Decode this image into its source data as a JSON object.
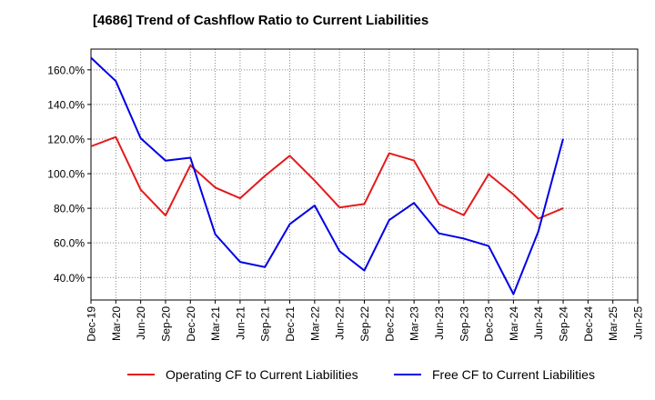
{
  "chart_data": {
    "type": "line",
    "title": "[4686]  Trend of Cashflow Ratio to Current Liabilities",
    "categories": [
      "Dec-19",
      "Mar-20",
      "Jun-20",
      "Sep-20",
      "Dec-20",
      "Mar-21",
      "Jun-21",
      "Sep-21",
      "Dec-21",
      "Mar-22",
      "Jun-22",
      "Sep-22",
      "Dec-22",
      "Mar-23",
      "Jun-23",
      "Sep-23",
      "Dec-23",
      "Mar-24",
      "Jun-24",
      "Sep-24",
      "Dec-24",
      "Mar-25"
    ],
    "x_tick_labels": [
      "Dec-19",
      "Mar-20",
      "Jun-20",
      "Sep-20",
      "Dec-20",
      "Mar-21",
      "Jun-21",
      "Sep-21",
      "Dec-21",
      "Mar-22",
      "Jun-22",
      "Sep-22",
      "Dec-22",
      "Mar-23",
      "Jun-23",
      "Sep-23",
      "Dec-23",
      "Mar-24",
      "Jun-24",
      "Sep-24",
      "Dec-24",
      "Mar-25",
      "Jun-25"
    ],
    "y_ticks": [
      40,
      60,
      80,
      100,
      120,
      140,
      160
    ],
    "y_tick_labels": [
      "40.0%",
      "60.0%",
      "80.0%",
      "100.0%",
      "120.0%",
      "140.0%",
      "160.0%"
    ],
    "ylim": [
      27,
      172
    ],
    "grid": true,
    "legend_position": "bottom",
    "series": [
      {
        "name": "Operating CF to Current Liabilities",
        "color": "#e41a1c",
        "values": [
          115.8,
          121.2,
          90.8,
          75.8,
          104.8,
          92.0,
          85.8,
          98.7,
          110.4,
          96.0,
          80.5,
          82.5,
          111.8,
          107.6,
          82.5,
          76.0,
          99.7,
          88.0,
          74.0,
          80.0,
          null,
          null
        ]
      },
      {
        "name": "Free CF to Current Liabilities",
        "color": "#0000e6",
        "values": [
          167.0,
          153.5,
          120.5,
          107.5,
          109.2,
          65.0,
          49.0,
          46.0,
          70.8,
          81.6,
          55.2,
          44.0,
          73.2,
          83.1,
          65.5,
          62.5,
          58.2,
          30.4,
          66.5,
          120.2,
          null,
          null
        ]
      }
    ]
  }
}
